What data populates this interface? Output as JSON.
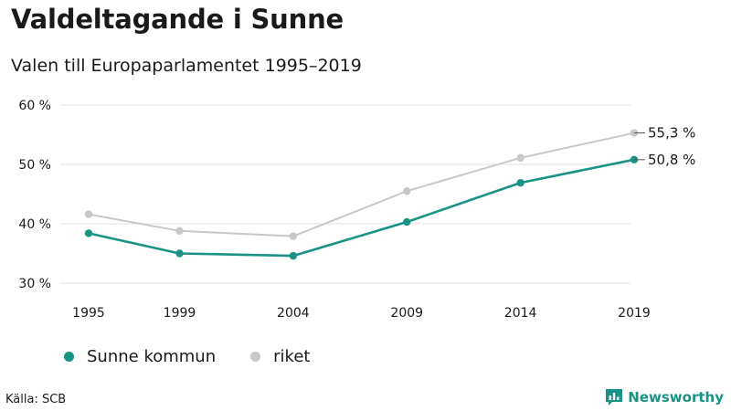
{
  "title": "Valdeltagande i Sunne",
  "subtitle": "Valen till Europaparlamentet 1995–2019",
  "source": "Källa: SCB",
  "brand": {
    "name": "Newsworthy",
    "color": "#1a9387",
    "icon": "bar-chart-speech-bubble-icon"
  },
  "chart_data": {
    "type": "line",
    "x": [
      "1995",
      "1999",
      "2004",
      "2009",
      "2014",
      "2019"
    ],
    "series": [
      {
        "name": "Sunne kommun",
        "color": "#1a9387",
        "values": [
          38.4,
          35.0,
          34.6,
          40.3,
          46.9,
          50.8
        ],
        "end_label": "50,8 %"
      },
      {
        "name": "riket",
        "color": "#c8c8c8",
        "values": [
          41.6,
          38.8,
          37.9,
          45.5,
          51.1,
          55.3
        ],
        "end_label": "55,3 %"
      }
    ],
    "yticks": [
      30,
      40,
      50,
      60
    ],
    "ytick_labels": [
      "30 %",
      "40 %",
      "50 %",
      "60 %"
    ],
    "ylim": [
      30,
      60
    ],
    "grid": true,
    "legend_position": "bottom-left"
  }
}
